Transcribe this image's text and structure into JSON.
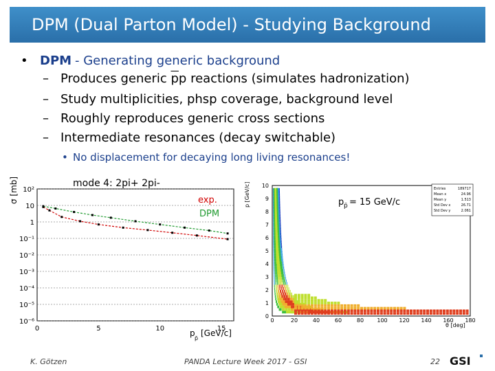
{
  "slide": {
    "title": "DPM (Dual Parton Model) - Studying Background",
    "bullet": {
      "marker": "•",
      "lead": "DPM",
      "rest": "- Generating generic background"
    },
    "subbullets": [
      {
        "dash": "–",
        "pre": "Produces generic ",
        "pbar": "p",
        "p2": "p",
        "post": " reactions (simulates hadronization)"
      },
      {
        "dash": "–",
        "text": "Study multiplicities, phsp coverage, background level"
      },
      {
        "dash": "–",
        "text": "Roughly reproduces generic cross sections"
      },
      {
        "dash": "–",
        "text": "Intermediate resonances (decay switchable)"
      }
    ],
    "subsub": {
      "marker": "•",
      "text": "No displacement for decaying long living resonances!"
    },
    "footer": {
      "author": "K. Götzen",
      "event": "PANDA Lecture Week 2017 - GSI",
      "page": "22",
      "logo_text": "GSI"
    }
  },
  "chart_data": [
    {
      "type": "scatter",
      "title": "mode 4: 2pi+ 2pi-",
      "xlabel": "p",
      "xlabel_sub": "p̄",
      "xlabel_unit": "[GeV/c]",
      "ylabel": "σ [mb]",
      "xlim": [
        0,
        16
      ],
      "ylog": true,
      "y_ticks": [
        "10²",
        "10",
        "1",
        "10⁻¹",
        "10⁻²",
        "10⁻³",
        "10⁻⁴",
        "10⁻⁵",
        "10⁻⁶"
      ],
      "x_ticks": [
        "0",
        "5",
        "10",
        "15"
      ],
      "legend": [
        {
          "label": "exp.",
          "color": "#d00000"
        },
        {
          "label": "DPM",
          "color": "#1f9a2f"
        }
      ],
      "series": [
        {
          "name": "exp.",
          "color": "#d00000",
          "x": [
            0.5,
            1.0,
            2.0,
            3.5,
            5.0,
            7.0,
            9.0,
            11.0,
            13.0,
            15.5
          ],
          "y": [
            8.0,
            5.0,
            2.0,
            1.1,
            0.7,
            0.45,
            0.32,
            0.22,
            0.15,
            0.09
          ]
        },
        {
          "name": "DPM",
          "color": "#1f9a2f",
          "x": [
            0.5,
            1.5,
            3.0,
            4.5,
            6.0,
            8.0,
            10.0,
            12.0,
            14.0,
            15.5
          ],
          "y": [
            9.0,
            6.5,
            4.0,
            2.6,
            1.8,
            1.1,
            0.7,
            0.45,
            0.3,
            0.2
          ]
        }
      ]
    },
    {
      "type": "heatmap",
      "xlabel": "θ [deg]",
      "ylabel": "p [GeV/c]",
      "xlim": [
        0,
        180
      ],
      "ylim": [
        0,
        10
      ],
      "x_ticks": [
        "0",
        "20",
        "40",
        "60",
        "80",
        "100",
        "120",
        "140",
        "160",
        "180"
      ],
      "y_ticks": [
        "0",
        "1",
        "2",
        "3",
        "4",
        "5",
        "6",
        "7",
        "8",
        "9",
        "10"
      ],
      "annotation": "p",
      "annotation_sub": "p̄",
      "annotation_rest": " = 15 GeV/c",
      "stats": [
        {
          "k": "Entries",
          "v": "189717"
        },
        {
          "k": "Mean x",
          "v": "24.96"
        },
        {
          "k": "Mean y",
          "v": "1.513"
        },
        {
          "k": "Std Dev x",
          "v": "26.71"
        },
        {
          "k": "Std Dev y",
          "v": "2.061"
        }
      ]
    }
  ]
}
